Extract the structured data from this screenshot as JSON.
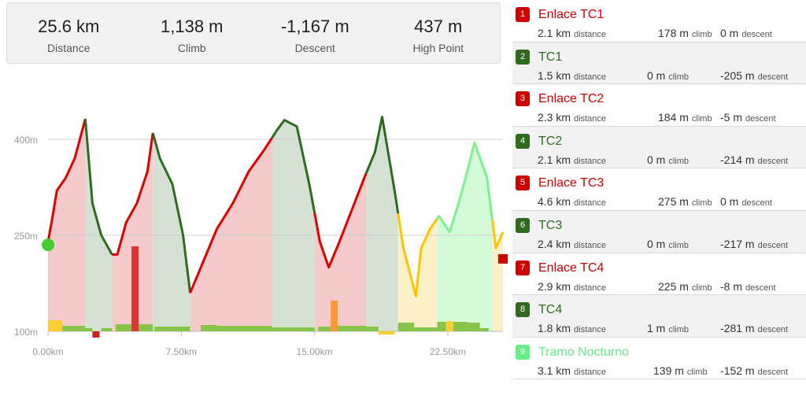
{
  "summary": [
    {
      "value": "25.6 km",
      "label": "Distance"
    },
    {
      "value": "1,138 m",
      "label": "Climb"
    },
    {
      "value": "-1,167 m",
      "label": "Descent"
    },
    {
      "value": "437 m",
      "label": "High Point"
    }
  ],
  "segments": [
    {
      "num": "1",
      "name": "Enlace TC1",
      "distance": "2.1 km",
      "climb": "178 m",
      "descent": "0 m",
      "color": "#cc0000"
    },
    {
      "num": "2",
      "name": "TC1",
      "distance": "1.5 km",
      "climb": "0 m",
      "descent": "-205 m",
      "color": "#2e6b1f"
    },
    {
      "num": "3",
      "name": "Enlace TC2",
      "distance": "2.3 km",
      "climb": "184 m",
      "descent": "-5 m",
      "color": "#cc0000"
    },
    {
      "num": "4",
      "name": "TC2",
      "distance": "2.1 km",
      "climb": "0 m",
      "descent": "-214 m",
      "color": "#2e6b1f"
    },
    {
      "num": "5",
      "name": "Enlace TC3",
      "distance": "4.6 km",
      "climb": "275 m",
      "descent": "0 m",
      "color": "#cc0000"
    },
    {
      "num": "6",
      "name": "TC3",
      "distance": "2.4 km",
      "climb": "0 m",
      "descent": "-217 m",
      "color": "#2e6b1f"
    },
    {
      "num": "7",
      "name": "Enlace TC4",
      "distance": "2.9 km",
      "climb": "225 m",
      "descent": "-8 m",
      "color": "#cc0000"
    },
    {
      "num": "8",
      "name": "TC4",
      "distance": "1.8 km",
      "climb": "1 m",
      "descent": "-281 m",
      "color": "#2e6b1f"
    },
    {
      "num": "9",
      "name": "Tramo Nocturno",
      "distance": "3.1 km",
      "climb": "139 m",
      "descent": "-152 m",
      "color": "#66ee88"
    }
  ],
  "segment_units": {
    "distance": "distance",
    "climb": "climb",
    "descent": "descent"
  },
  "chart_data": {
    "type": "area",
    "y_ticks": [
      "400m",
      "250m",
      "100m"
    ],
    "x_ticks": [
      "0.00km",
      "7.50km",
      "15.00km",
      "22.50km"
    ],
    "ylim": [
      100,
      437
    ],
    "xlim": [
      0,
      25.6
    ],
    "x": [
      0,
      0.2,
      0.5,
      1.0,
      1.5,
      2.1,
      2.5,
      3.0,
      3.6,
      3.9,
      4.4,
      5.0,
      5.6,
      5.9,
      6.3,
      7.0,
      7.6,
      8.0,
      8.6,
      9.5,
      10.4,
      11.3,
      12.2,
      12.9,
      13.3,
      14.0,
      14.7,
      15.3,
      15.8,
      16.4,
      17.1,
      17.8,
      18.4,
      18.8,
      19.5,
      20.0,
      20.7,
      21.0,
      21.5,
      22.0,
      22.6,
      23.1,
      23.5,
      24.0,
      24.7,
      25.2,
      25.6
    ],
    "elevation": [
      240,
      270,
      320,
      340,
      370,
      432,
      300,
      250,
      220,
      220,
      270,
      300,
      350,
      410,
      370,
      330,
      250,
      160,
      200,
      260,
      300,
      350,
      385,
      415,
      430,
      420,
      330,
      240,
      200,
      240,
      290,
      340,
      380,
      435,
      320,
      230,
      155,
      230,
      260,
      280,
      255,
      300,
      340,
      395,
      340,
      230,
      255
    ],
    "sections": [
      {
        "type": "climb",
        "end_km": 2.1
      },
      {
        "type": "descent",
        "end_km": 3.6
      },
      {
        "type": "climb",
        "end_km": 5.9
      },
      {
        "type": "descent",
        "end_km": 8.0
      },
      {
        "type": "climb",
        "end_km": 12.6
      },
      {
        "type": "descent",
        "end_km": 15.0
      },
      {
        "type": "climb",
        "end_km": 17.9
      },
      {
        "type": "descent",
        "end_km": 19.7
      },
      {
        "type": "mixed",
        "end_km": 21.9
      },
      {
        "type": "climb-light",
        "end_km": 25.0
      },
      {
        "type": "mixed",
        "end_km": 25.6
      }
    ]
  }
}
